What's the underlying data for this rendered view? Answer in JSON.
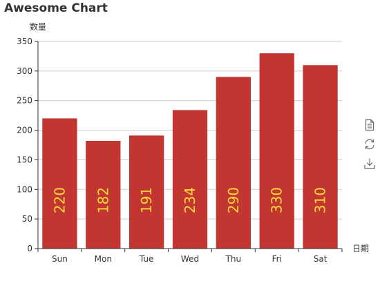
{
  "chart_data": {
    "type": "bar",
    "title": "Awesome Chart",
    "ylabel": "数量",
    "xlabel": "日期",
    "categories": [
      "Sun",
      "Mon",
      "Tue",
      "Wed",
      "Thu",
      "Fri",
      "Sat"
    ],
    "values": [
      220,
      182,
      191,
      234,
      290,
      330,
      310
    ],
    "ylim": [
      0,
      350
    ],
    "yticks": [
      0,
      50,
      100,
      150,
      200,
      250,
      300,
      350
    ],
    "grid": true,
    "bar_color": "#C23531",
    "label_color": "#FFD93A",
    "data_labels": "inside-vertical"
  },
  "toolbox": {
    "items": [
      {
        "icon": "data-view-icon"
      },
      {
        "icon": "refresh-icon"
      },
      {
        "icon": "save-image-icon"
      }
    ]
  }
}
